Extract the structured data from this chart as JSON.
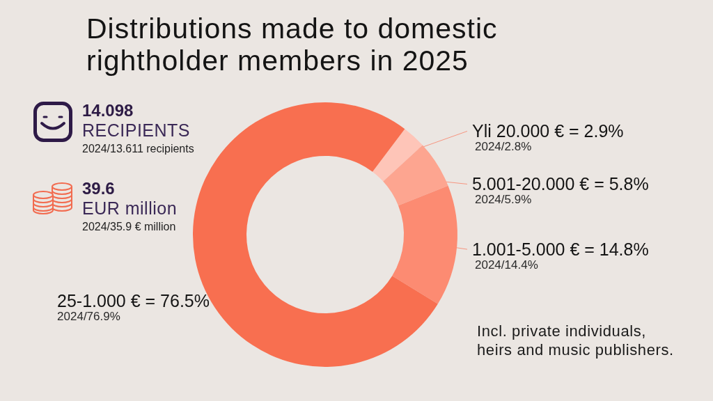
{
  "chart_data": [
    {
      "type": "donut",
      "title": "Distributions made to domestic rightholder members in 2025",
      "categories": [
        "Yli 20.000 € = 2.9%",
        "5.001-20.000 € = 5.8%",
        "1.001-5.000 € = 14.8%",
        "25-1.000 € = 76.5%"
      ],
      "values": [
        2.9,
        5.8,
        14.8,
        76.5
      ],
      "colors": [
        "#fec5b8",
        "#fda590",
        "#fc8b72",
        "#f86f50"
      ],
      "annotations": [
        {
          "text": "2024/2.8%",
          "x": "Yli 20.000 € = 2.9%"
        },
        {
          "text": "2024/5.9%",
          "x": "5.001-20.000 € = 5.8%"
        },
        {
          "text": "2024/14.4%",
          "x": "1.001-5.000 € = 14.8%"
        },
        {
          "text": "2024/76.9%",
          "x": "25-1.000 € = 76.5%"
        },
        "Incl. private individuals, heirs and music publishers."
      ]
    },
    {
      "type": "other",
      "annotations": [
        "14.098",
        "RECIPIENTS",
        "2024/13.611 recipients",
        "39.6",
        "EUR million",
        "2024/35.9 € million"
      ]
    }
  ]
}
